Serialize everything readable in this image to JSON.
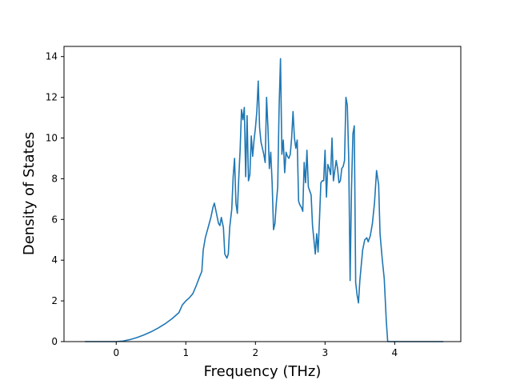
{
  "chart_data": {
    "type": "line",
    "title": "",
    "xlabel": "Frequency (THz)",
    "ylabel": "Density of States",
    "xlim": [
      -0.75,
      4.95
    ],
    "ylim": [
      0,
      14.5
    ],
    "x_ticks": [
      0,
      1,
      2,
      3,
      4
    ],
    "y_ticks": [
      0,
      2,
      4,
      6,
      8,
      10,
      12,
      14
    ],
    "x_tick_labels": [
      "0",
      "1",
      "2",
      "3",
      "4"
    ],
    "y_tick_labels": [
      "0",
      "2",
      "4",
      "6",
      "8",
      "10",
      "12",
      "14"
    ],
    "grid": false,
    "legend": "none",
    "series": [
      {
        "color": "#1f77b4",
        "points": [
          [
            -0.45,
            0
          ],
          [
            0.0,
            0
          ],
          [
            0.1,
            0.03
          ],
          [
            0.2,
            0.1
          ],
          [
            0.3,
            0.2
          ],
          [
            0.4,
            0.33
          ],
          [
            0.5,
            0.48
          ],
          [
            0.6,
            0.66
          ],
          [
            0.7,
            0.87
          ],
          [
            0.8,
            1.12
          ],
          [
            0.9,
            1.42
          ],
          [
            0.95,
            1.8
          ],
          [
            1.0,
            2.0
          ],
          [
            1.05,
            2.15
          ],
          [
            1.1,
            2.35
          ],
          [
            1.15,
            2.75
          ],
          [
            1.2,
            3.2
          ],
          [
            1.23,
            3.45
          ],
          [
            1.25,
            4.5
          ],
          [
            1.28,
            5.1
          ],
          [
            1.32,
            5.6
          ],
          [
            1.36,
            6.1
          ],
          [
            1.39,
            6.6
          ],
          [
            1.41,
            6.8
          ],
          [
            1.44,
            6.3
          ],
          [
            1.47,
            5.8
          ],
          [
            1.49,
            5.7
          ],
          [
            1.51,
            6.1
          ],
          [
            1.54,
            5.6
          ],
          [
            1.56,
            4.3
          ],
          [
            1.59,
            4.1
          ],
          [
            1.61,
            4.3
          ],
          [
            1.63,
            5.6
          ],
          [
            1.66,
            6.5
          ],
          [
            1.68,
            8.1
          ],
          [
            1.7,
            9.0
          ],
          [
            1.72,
            6.8
          ],
          [
            1.74,
            6.3
          ],
          [
            1.76,
            8.0
          ],
          [
            1.78,
            9.4
          ],
          [
            1.8,
            11.4
          ],
          [
            1.82,
            10.9
          ],
          [
            1.84,
            11.5
          ],
          [
            1.86,
            8.1
          ],
          [
            1.88,
            11.1
          ],
          [
            1.9,
            7.9
          ],
          [
            1.92,
            8.2
          ],
          [
            1.94,
            10.1
          ],
          [
            1.96,
            9.1
          ],
          [
            1.98,
            9.9
          ],
          [
            2.0,
            10.5
          ],
          [
            2.02,
            11.3
          ],
          [
            2.04,
            12.8
          ],
          [
            2.06,
            10.5
          ],
          [
            2.08,
            9.8
          ],
          [
            2.1,
            9.5
          ],
          [
            2.12,
            9.2
          ],
          [
            2.14,
            8.8
          ],
          [
            2.16,
            12.0
          ],
          [
            2.18,
            10.5
          ],
          [
            2.2,
            8.5
          ],
          [
            2.22,
            9.3
          ],
          [
            2.24,
            7.8
          ],
          [
            2.26,
            5.5
          ],
          [
            2.28,
            5.8
          ],
          [
            2.3,
            6.8
          ],
          [
            2.32,
            7.6
          ],
          [
            2.34,
            11.5
          ],
          [
            2.36,
            13.9
          ],
          [
            2.38,
            9.2
          ],
          [
            2.4,
            9.9
          ],
          [
            2.42,
            8.3
          ],
          [
            2.44,
            9.3
          ],
          [
            2.46,
            9.1
          ],
          [
            2.48,
            9.0
          ],
          [
            2.5,
            9.2
          ],
          [
            2.52,
            10.0
          ],
          [
            2.54,
            11.3
          ],
          [
            2.56,
            10.0
          ],
          [
            2.58,
            9.5
          ],
          [
            2.6,
            9.9
          ],
          [
            2.62,
            6.9
          ],
          [
            2.64,
            6.7
          ],
          [
            2.66,
            6.6
          ],
          [
            2.68,
            6.4
          ],
          [
            2.7,
            8.8
          ],
          [
            2.72,
            7.8
          ],
          [
            2.74,
            9.4
          ],
          [
            2.76,
            7.6
          ],
          [
            2.78,
            7.4
          ],
          [
            2.8,
            7.2
          ],
          [
            2.82,
            5.7
          ],
          [
            2.84,
            5.0
          ],
          [
            2.86,
            4.3
          ],
          [
            2.88,
            5.3
          ],
          [
            2.9,
            4.4
          ],
          [
            2.92,
            6.0
          ],
          [
            2.94,
            7.8
          ],
          [
            2.96,
            7.9
          ],
          [
            2.98,
            7.9
          ],
          [
            3.0,
            9.4
          ],
          [
            3.02,
            7.1
          ],
          [
            3.04,
            8.7
          ],
          [
            3.06,
            8.5
          ],
          [
            3.08,
            8.2
          ],
          [
            3.1,
            10.0
          ],
          [
            3.12,
            7.9
          ],
          [
            3.14,
            8.4
          ],
          [
            3.16,
            8.9
          ],
          [
            3.18,
            8.5
          ],
          [
            3.2,
            7.8
          ],
          [
            3.22,
            7.9
          ],
          [
            3.24,
            8.5
          ],
          [
            3.26,
            8.6
          ],
          [
            3.28,
            8.9
          ],
          [
            3.3,
            12.0
          ],
          [
            3.32,
            11.6
          ],
          [
            3.34,
            9.0
          ],
          [
            3.36,
            3.0
          ],
          [
            3.38,
            7.5
          ],
          [
            3.4,
            10.2
          ],
          [
            3.42,
            10.6
          ],
          [
            3.44,
            2.9
          ],
          [
            3.46,
            2.3
          ],
          [
            3.48,
            1.9
          ],
          [
            3.5,
            3.0
          ],
          [
            3.54,
            4.5
          ],
          [
            3.57,
            5.0
          ],
          [
            3.6,
            5.1
          ],
          [
            3.62,
            4.9
          ],
          [
            3.65,
            5.2
          ],
          [
            3.68,
            5.8
          ],
          [
            3.71,
            6.8
          ],
          [
            3.74,
            8.4
          ],
          [
            3.77,
            7.7
          ],
          [
            3.79,
            5.3
          ],
          [
            3.82,
            4.1
          ],
          [
            3.85,
            3.1
          ],
          [
            3.88,
            1.0
          ],
          [
            3.9,
            0.0
          ],
          [
            4.05,
            0.0
          ],
          [
            4.7,
            0
          ]
        ]
      }
    ]
  }
}
